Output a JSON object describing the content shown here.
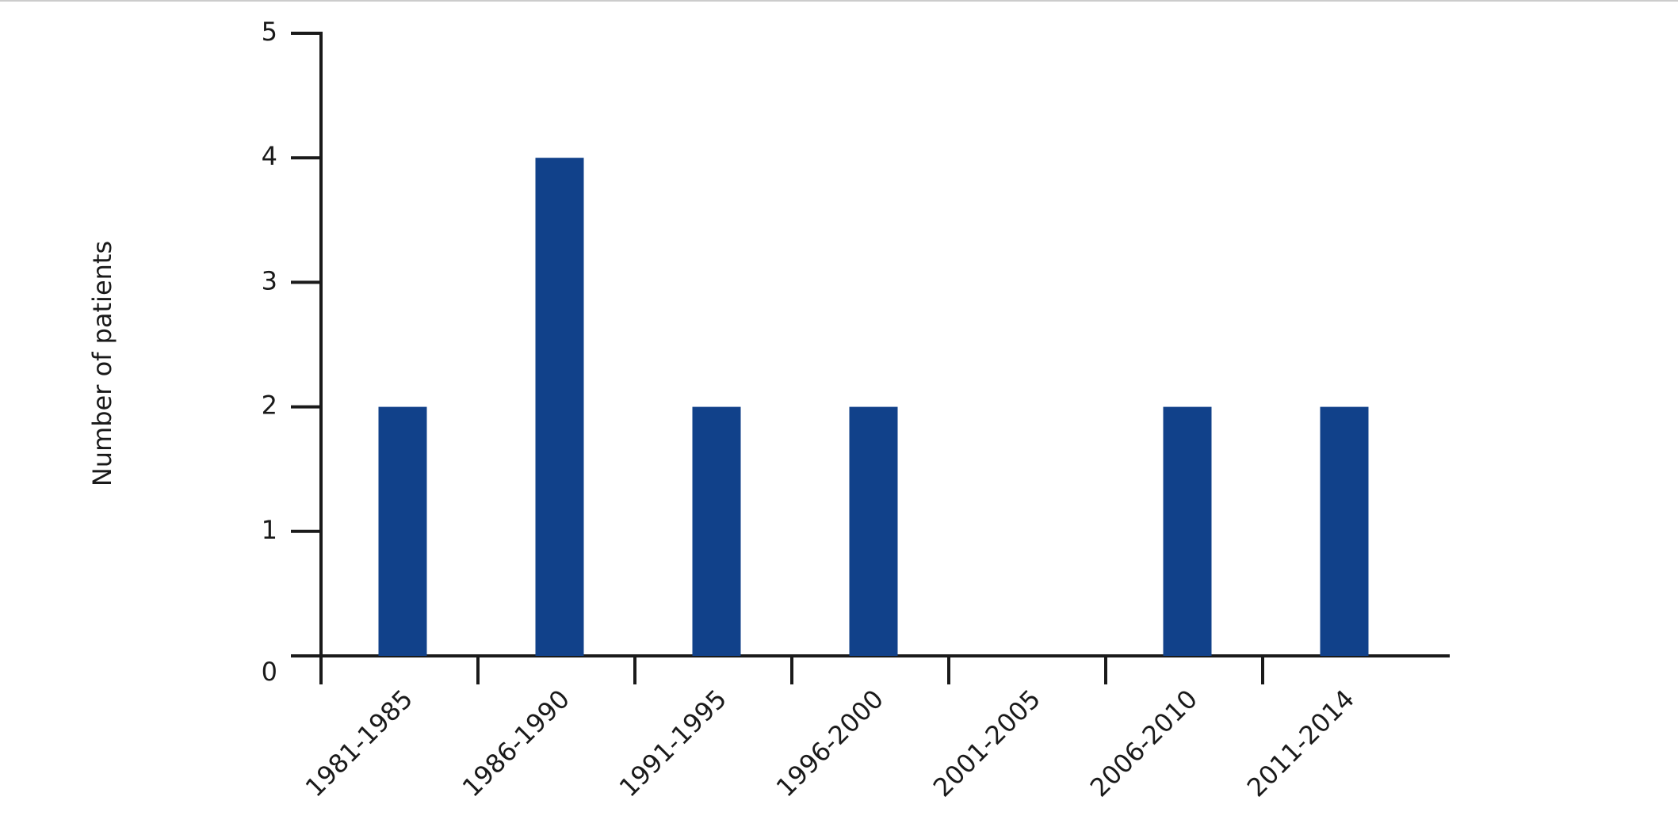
{
  "chart_data": {
    "type": "bar",
    "y_label": "Number of patients",
    "categories": [
      "1981-1985",
      "1986-1990",
      "1991-1995",
      "1996-2000",
      "2001-2005",
      "2006-2010",
      "2011-2014"
    ],
    "values": [
      2,
      4,
      2,
      2,
      0,
      2,
      2
    ],
    "color": "#11418a",
    "ylim": [
      0,
      5
    ],
    "yticks": [
      0,
      1,
      2,
      3,
      4,
      5
    ],
    "grid": false
  }
}
